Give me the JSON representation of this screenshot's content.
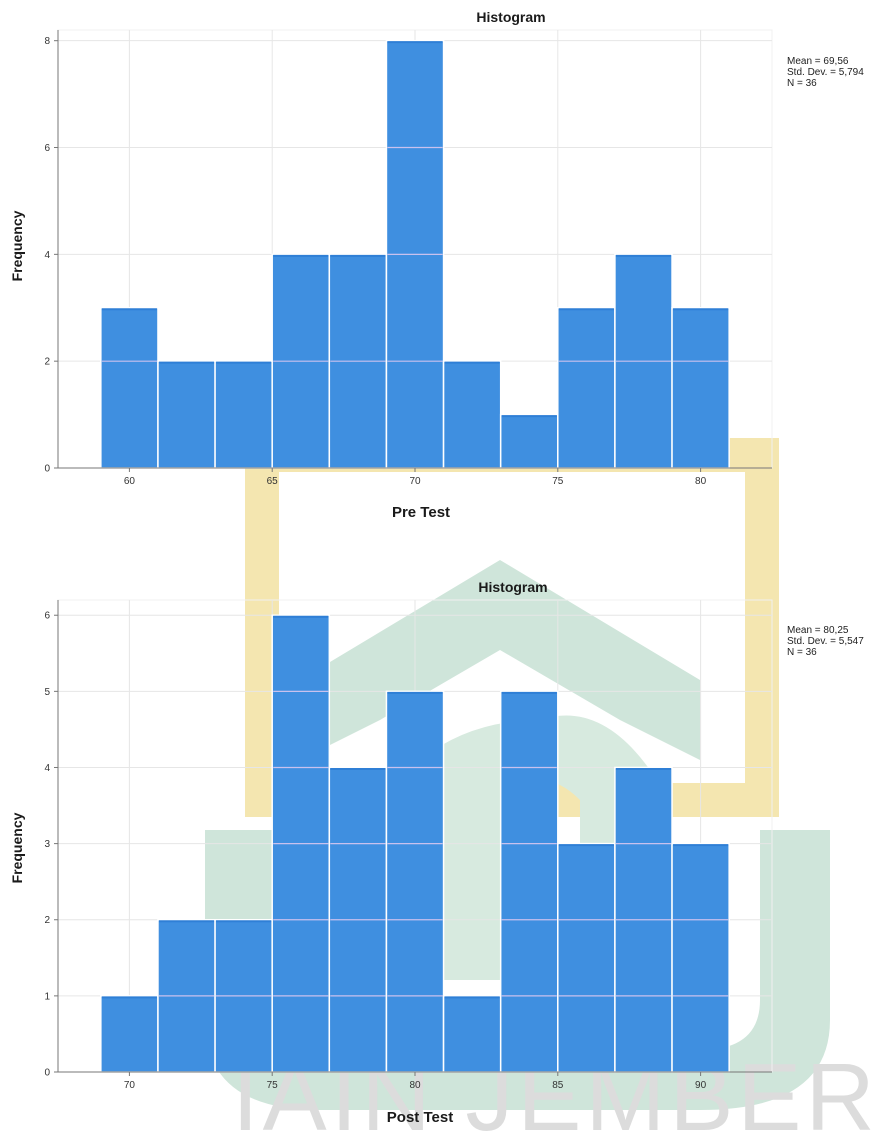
{
  "watermark": {
    "text": "IAIN JEMBER",
    "colors": {
      "gold": "#f4e6b0",
      "green": "#cfe5da",
      "text": "#dcdcdc"
    }
  },
  "colors": {
    "bar": "#3f8fe0",
    "bar_dark": "#2f7fd6",
    "bar_edge": "#ffffff",
    "grid": "#e6e6e6",
    "axis": "#777777"
  },
  "chart_data": [
    {
      "type": "bar",
      "title": "Histogram",
      "xlabel": "Pre Test",
      "ylabel": "Frequency",
      "bins": [
        {
          "start": 59,
          "end": 61,
          "count": 3
        },
        {
          "start": 61,
          "end": 63,
          "count": 2
        },
        {
          "start": 63,
          "end": 65,
          "count": 2
        },
        {
          "start": 65,
          "end": 67,
          "count": 4
        },
        {
          "start": 67,
          "end": 69,
          "count": 4
        },
        {
          "start": 69,
          "end": 71,
          "count": 8
        },
        {
          "start": 71,
          "end": 73,
          "count": 2
        },
        {
          "start": 73,
          "end": 75,
          "count": 1
        },
        {
          "start": 75,
          "end": 77,
          "count": 3
        },
        {
          "start": 77,
          "end": 79,
          "count": 4
        },
        {
          "start": 79,
          "end": 81,
          "count": 3
        }
      ],
      "xlim": [
        57.5,
        82.5
      ],
      "ylim": [
        0,
        8.2
      ],
      "x_ticks": [
        60,
        65,
        70,
        75,
        80
      ],
      "y_ticks": [
        0,
        2,
        4,
        6,
        8
      ],
      "grid": true,
      "stats": [
        "Mean = 69,56",
        "Std. Dev. = 5,794",
        "N = 36"
      ]
    },
    {
      "type": "bar",
      "title": "Histogram",
      "xlabel": "Post Test",
      "ylabel": "Frequency",
      "bins": [
        {
          "start": 69,
          "end": 71,
          "count": 1
        },
        {
          "start": 71,
          "end": 73,
          "count": 2
        },
        {
          "start": 73,
          "end": 75,
          "count": 2
        },
        {
          "start": 75,
          "end": 77,
          "count": 6
        },
        {
          "start": 77,
          "end": 79,
          "count": 4
        },
        {
          "start": 79,
          "end": 81,
          "count": 5
        },
        {
          "start": 81,
          "end": 83,
          "count": 1
        },
        {
          "start": 83,
          "end": 85,
          "count": 5
        },
        {
          "start": 85,
          "end": 87,
          "count": 3
        },
        {
          "start": 87,
          "end": 89,
          "count": 4
        },
        {
          "start": 89,
          "end": 91,
          "count": 3
        }
      ],
      "xlim": [
        67.5,
        92.5
      ],
      "ylim": [
        0,
        6.2
      ],
      "x_ticks": [
        70,
        75,
        80,
        85,
        90
      ],
      "y_ticks": [
        0,
        1,
        2,
        3,
        4,
        5,
        6
      ],
      "grid": true,
      "stats": [
        "Mean = 80,25",
        "Std. Dev. = 5,547",
        "N = 36"
      ]
    }
  ]
}
